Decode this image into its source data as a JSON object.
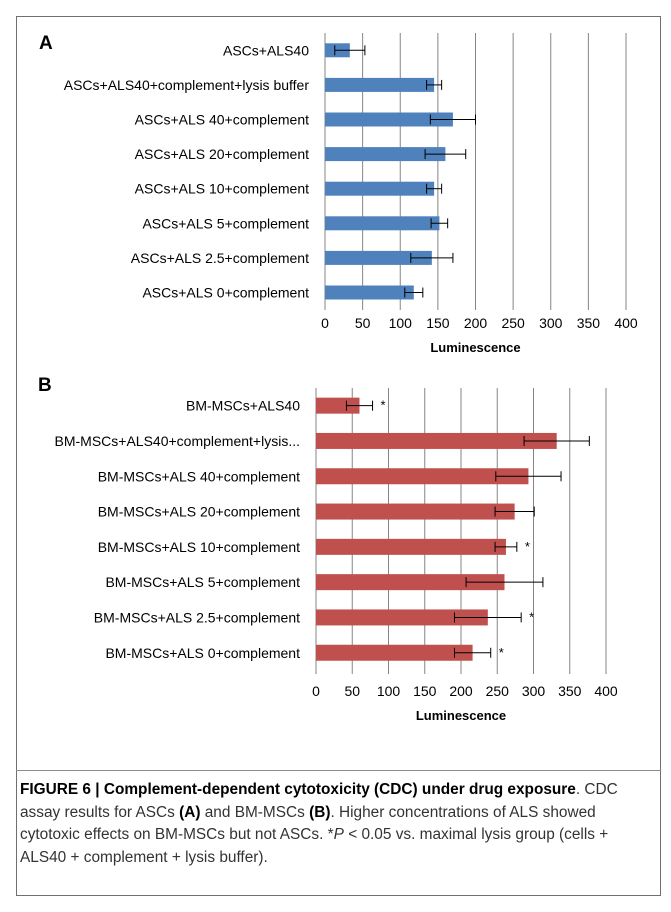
{
  "chart_data": [
    {
      "type": "bar",
      "orientation": "horizontal",
      "panel_label": "A",
      "title": "",
      "xlabel": "Luminescence",
      "ylabel": "",
      "xlim": [
        0,
        400
      ],
      "xticks": [
        0,
        50,
        100,
        150,
        200,
        250,
        300,
        350,
        400
      ],
      "grid": true,
      "bar_color": "#4F81BD",
      "categories": [
        "ASCs+ALS40",
        "ASCs+ALS40+complement+lysis buffer",
        "ASCs+ALS 40+complement",
        "ASCs+ALS 20+complement",
        "ASCs+ALS 10+complement",
        "ASCs+ALS 5+complement",
        "ASCs+ALS 2.5+complement",
        "ASCs+ALS 0+complement"
      ],
      "values": [
        33,
        145,
        170,
        160,
        145,
        152,
        142,
        118
      ],
      "errors": [
        20,
        10,
        30,
        27,
        10,
        11,
        28,
        12
      ],
      "significance": [
        "",
        "",
        "",
        "",
        "",
        "",
        "",
        ""
      ]
    },
    {
      "type": "bar",
      "orientation": "horizontal",
      "panel_label": "B",
      "title": "",
      "xlabel": "Luminescence",
      "ylabel": "",
      "xlim": [
        0,
        400
      ],
      "xticks": [
        0,
        50,
        100,
        150,
        200,
        250,
        300,
        350,
        400
      ],
      "grid": true,
      "bar_color": "#C0504D",
      "categories": [
        "BM-MSCs+ALS40",
        "BM-MSCs+ALS40+complement+lysis...",
        "BM-MSCs+ALS 40+complement",
        "BM-MSCs+ALS 20+complement",
        "BM-MSCs+ALS 10+complement",
        "BM-MSCs+ALS 5+complement",
        "BM-MSCs+ALS 2.5+complement",
        "BM-MSCs+ALS 0+complement"
      ],
      "values": [
        60,
        332,
        293,
        274,
        262,
        260,
        237,
        216
      ],
      "errors": [
        18,
        45,
        45,
        27,
        15,
        53,
        46,
        25
      ],
      "significance": [
        "*",
        "",
        "",
        "",
        "*",
        "",
        "*",
        "*"
      ]
    }
  ],
  "caption": {
    "title": "FIGURE 6 | Complement-dependent cytotoxicity (CDC) under drug exposure",
    "t1": ". CDC assay results for ASCs ",
    "a": "(A)",
    "t2": " and BM-MSCs ",
    "b": "(B)",
    "t3": ". Higher concentrations of ALS showed cytotoxic effects on BM-MSCs but not ASCs. ",
    "star": "*",
    "p": "P",
    "t4": " < 0.05 vs. maximal lysis group (cells + ALS40 + complement + lysis buffer)."
  }
}
